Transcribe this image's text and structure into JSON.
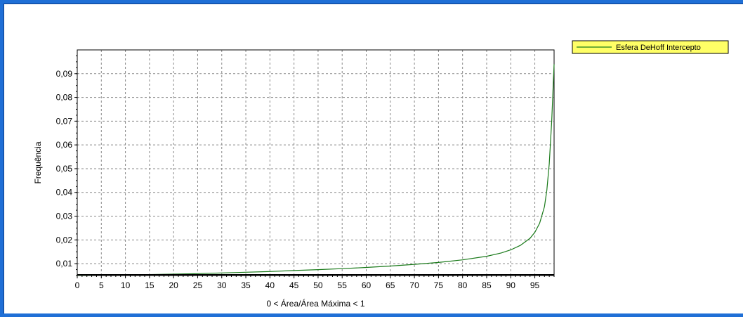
{
  "colors": {
    "frame": "#1f6fd6",
    "plot_background": "#ffffff",
    "grid": "#888888",
    "series_line": "#1a7a1a",
    "legend_background": "#ffff66",
    "legend_line": "#1a7a1a"
  },
  "chart_data": {
    "type": "line",
    "xlabel": "0 < Área/Área Máxima < 1",
    "ylabel": "Frequência",
    "xlim": [
      0,
      99
    ],
    "ylim": [
      0.005,
      0.1
    ],
    "x_ticks": [
      0,
      5,
      10,
      15,
      20,
      25,
      30,
      35,
      40,
      45,
      50,
      55,
      60,
      65,
      70,
      75,
      80,
      85,
      90,
      95
    ],
    "x_tick_labels": [
      "0",
      "5",
      "10",
      "15",
      "20",
      "25",
      "30",
      "35",
      "40",
      "45",
      "50",
      "55",
      "60",
      "65",
      "70",
      "75",
      "80",
      "85",
      "90",
      "95"
    ],
    "y_ticks": [
      0.01,
      0.02,
      0.03,
      0.04,
      0.05,
      0.06,
      0.07,
      0.08,
      0.09
    ],
    "y_tick_labels": [
      "0,01",
      "0,02",
      "0,03",
      "0,04",
      "0,05",
      "0,06",
      "0,07",
      "0,08",
      "0,09"
    ],
    "grid": true,
    "legend_position": "top-right",
    "series": [
      {
        "name": "Esfera DeHoff Intercepto",
        "x": [
          0,
          5,
          10,
          15,
          20,
          25,
          30,
          35,
          40,
          45,
          50,
          55,
          60,
          65,
          70,
          75,
          80,
          85,
          88,
          90,
          92,
          94,
          95,
          96,
          97,
          97.5,
          98,
          98.5,
          99
        ],
        "y": [
          0.0051,
          0.0052,
          0.0053,
          0.0054,
          0.0056,
          0.0058,
          0.0061,
          0.0064,
          0.0067,
          0.0071,
          0.0075,
          0.0079,
          0.0084,
          0.009,
          0.0097,
          0.0105,
          0.0116,
          0.0131,
          0.0145,
          0.0158,
          0.0177,
          0.0207,
          0.0232,
          0.027,
          0.034,
          0.041,
          0.052,
          0.07,
          0.094
        ]
      }
    ]
  }
}
